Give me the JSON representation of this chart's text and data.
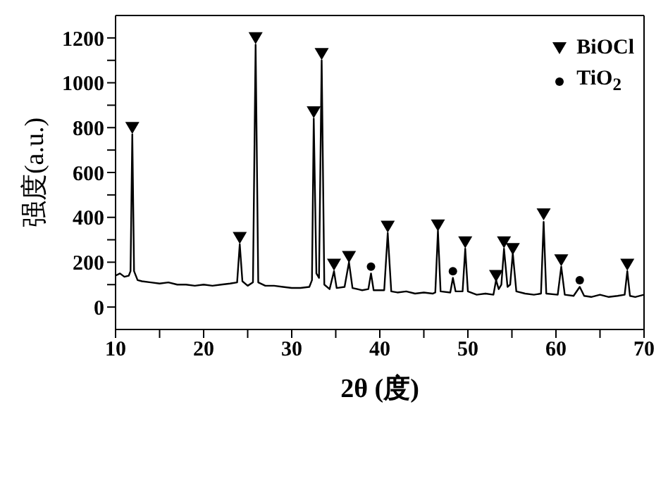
{
  "chart_data": {
    "type": "line",
    "xlabel": "2θ (度)",
    "ylabel": "强度(a.u.)",
    "xlim": [
      10,
      70
    ],
    "ylim": [
      -100,
      1300
    ],
    "xticks": [
      10,
      {
        "value": 15,
        "label": null
      },
      20,
      {
        "value": 25,
        "label": null
      },
      30,
      {
        "value": 35,
        "label": null
      },
      40,
      {
        "value": 45,
        "label": null
      },
      50,
      {
        "value": 55,
        "label": null
      },
      60,
      {
        "value": 65,
        "label": null
      },
      70
    ],
    "yticks": [
      0,
      {
        "value": 100,
        "label": null
      },
      200,
      {
        "value": 300,
        "label": null
      },
      400,
      {
        "value": 500,
        "label": null
      },
      600,
      {
        "value": 700,
        "label": null
      },
      800,
      {
        "value": 900,
        "label": null
      },
      1000,
      {
        "value": 1100,
        "label": null
      },
      1200
    ],
    "grid": false,
    "legend": "top right",
    "series": [
      {
        "color": "#000000",
        "marker": "none",
        "x": [
          10,
          10.5,
          11,
          11.5,
          11.7,
          11.9,
          12.1,
          12.5,
          13,
          14,
          15,
          16,
          17,
          18,
          19,
          20,
          21,
          22,
          23,
          23.8,
          24.1,
          24.4,
          25,
          25.6,
          25.9,
          26.2,
          27,
          28,
          29,
          30,
          31,
          32,
          32.3,
          32.5,
          32.8,
          33.1,
          33.4,
          33.7,
          34.3,
          34.8,
          35.1,
          36,
          36.5,
          36.9,
          38,
          38.7,
          39,
          39.3,
          40.5,
          40.9,
          41.3,
          42,
          43,
          44,
          45,
          46,
          46.3,
          46.6,
          46.9,
          48,
          48.3,
          48.6,
          49.4,
          49.7,
          50,
          51,
          52,
          52.9,
          53.2,
          53.5,
          53.8,
          54.1,
          54.5,
          54.8,
          55.1,
          55.5,
          56.5,
          57.5,
          58.3,
          58.6,
          58.9,
          60.2,
          60.6,
          61,
          62,
          62.7,
          63.2,
          64,
          65,
          66,
          67,
          67.8,
          68.1,
          68.4,
          69,
          70
        ],
        "values": [
          140,
          150,
          135,
          140,
          160,
          770,
          160,
          120,
          115,
          110,
          105,
          110,
          100,
          100,
          95,
          100,
          95,
          100,
          105,
          110,
          280,
          115,
          95,
          110,
          1170,
          110,
          95,
          95,
          90,
          85,
          85,
          90,
          120,
          840,
          150,
          130,
          1100,
          100,
          80,
          160,
          85,
          90,
          200,
          85,
          75,
          80,
          150,
          75,
          75,
          330,
          70,
          65,
          70,
          60,
          65,
          60,
          65,
          340,
          70,
          65,
          130,
          70,
          70,
          260,
          70,
          55,
          60,
          55,
          120,
          80,
          100,
          260,
          90,
          100,
          240,
          70,
          60,
          55,
          60,
          380,
          60,
          55,
          180,
          55,
          50,
          90,
          50,
          45,
          55,
          45,
          50,
          55,
          160,
          50,
          45,
          55
        ]
      },
      {
        "type": "scatter",
        "name": "BiOCl",
        "color": "#000000",
        "marker": "triangle",
        "x": [
          11.9,
          24.1,
          25.9,
          32.5,
          33.4,
          34.8,
          36.5,
          40.9,
          46.6,
          49.7,
          53.2,
          54.1,
          55.1,
          58.6,
          60.6,
          68.1
        ],
        "values": [
          800,
          310,
          1200,
          870,
          1130,
          190,
          225,
          360,
          365,
          290,
          140,
          290,
          260,
          415,
          210,
          190
        ]
      },
      {
        "type": "scatter",
        "name": "TiO$_{2}$",
        "color": "#000000",
        "marker": "circle",
        "x": [
          39.0,
          48.3,
          62.7
        ],
        "values": [
          180,
          160,
          120
        ]
      }
    ]
  }
}
